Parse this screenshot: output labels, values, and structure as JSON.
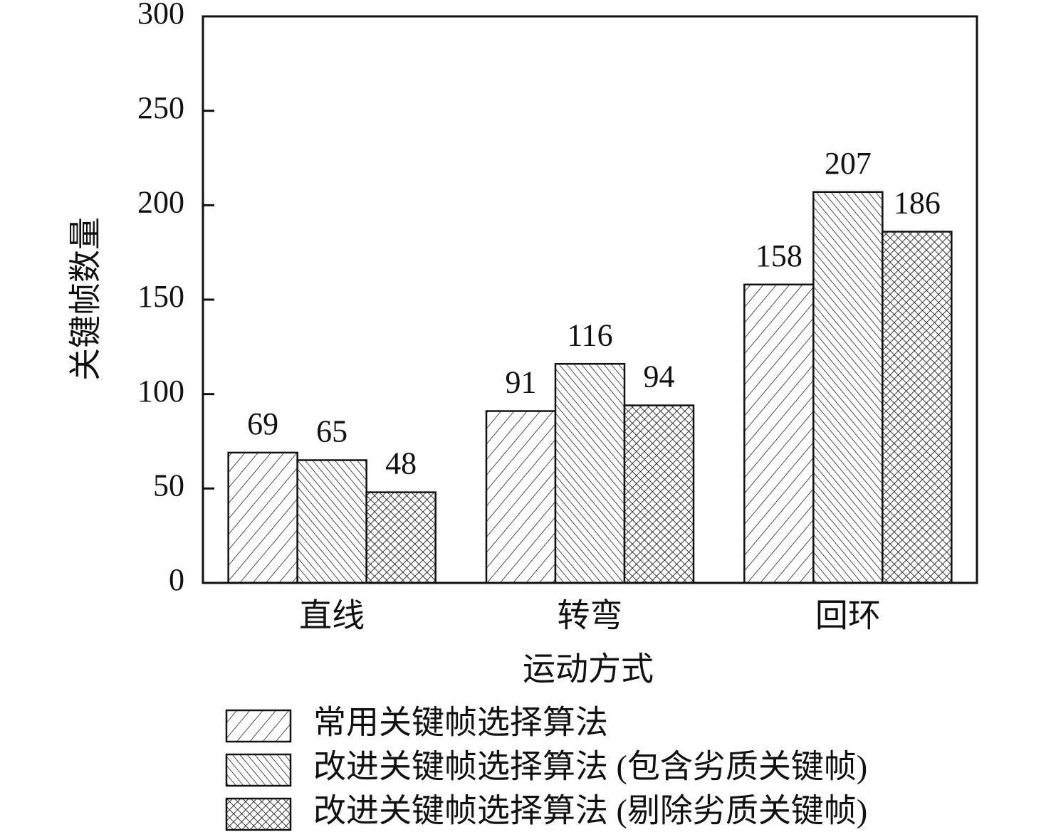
{
  "chart_data": {
    "type": "bar",
    "x_label": "运动方式",
    "y_label": "关键帧数量",
    "categories": [
      "直线",
      "转弯",
      "回环"
    ],
    "series": [
      {
        "name": "常用关键帧选择算法",
        "pattern": "diagonal-up",
        "values": [
          69,
          91,
          158
        ]
      },
      {
        "name": "改进关键帧选择算法 (包含劣质关键帧)",
        "pattern": "diagonal-down",
        "values": [
          65,
          116,
          207
        ]
      },
      {
        "name": "改进关键帧选择算法 (剔除劣质关键帧)",
        "pattern": "crosshatch",
        "values": [
          48,
          94,
          186
        ]
      }
    ],
    "ylim": [
      0,
      300
    ],
    "yticks": [
      0,
      50,
      100,
      150,
      200,
      250,
      300
    ],
    "grid": false
  }
}
